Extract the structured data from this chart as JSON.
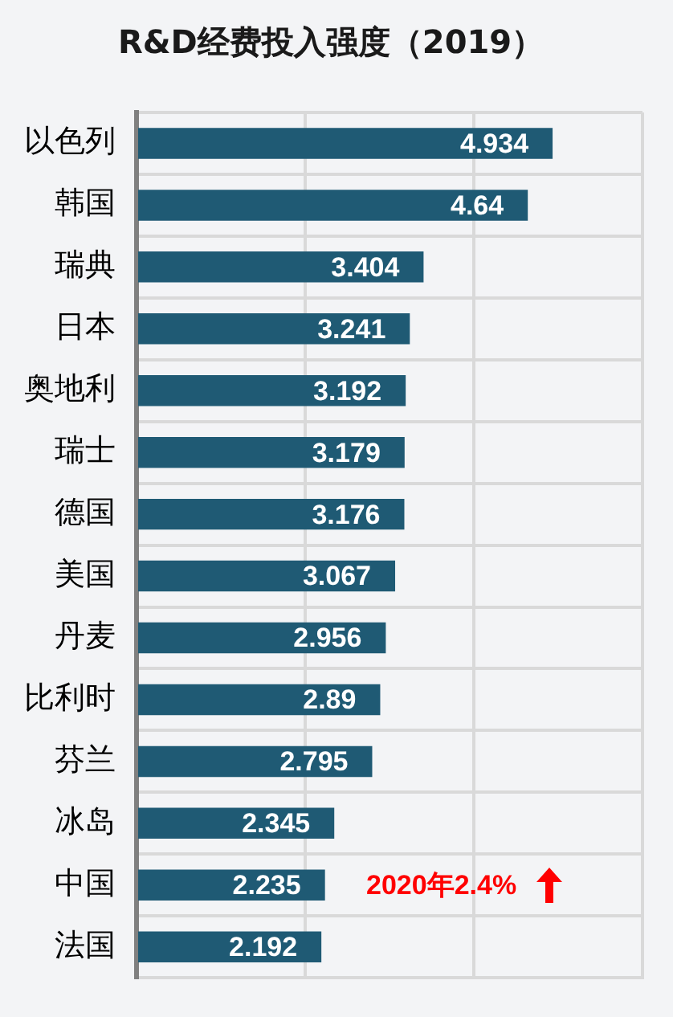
{
  "chart_data": {
    "type": "bar",
    "orientation": "horizontal",
    "title": "R&D经费投入强度（2019）",
    "categories": [
      "以色列",
      "韩国",
      "瑞典",
      "日本",
      "奥地利",
      "瑞士",
      "德国",
      "美国",
      "丹麦",
      "比利时",
      "芬兰",
      "冰岛",
      "中国",
      "法国"
    ],
    "values": [
      4.934,
      4.64,
      3.404,
      3.241,
      3.192,
      3.179,
      3.176,
      3.067,
      2.956,
      2.89,
      2.795,
      2.345,
      2.235,
      2.192
    ],
    "color": "#1f5a74",
    "xlim": [
      0,
      6
    ],
    "xticks": [
      {
        "value": 0,
        "label": null
      },
      {
        "value": 2,
        "label": null
      },
      {
        "value": 4,
        "label": null
      },
      {
        "value": 6,
        "label": null
      }
    ],
    "grid": true,
    "tick_labels": "y",
    "data_labels": true,
    "annotations": [
      "2020年2.4%"
    ]
  }
}
